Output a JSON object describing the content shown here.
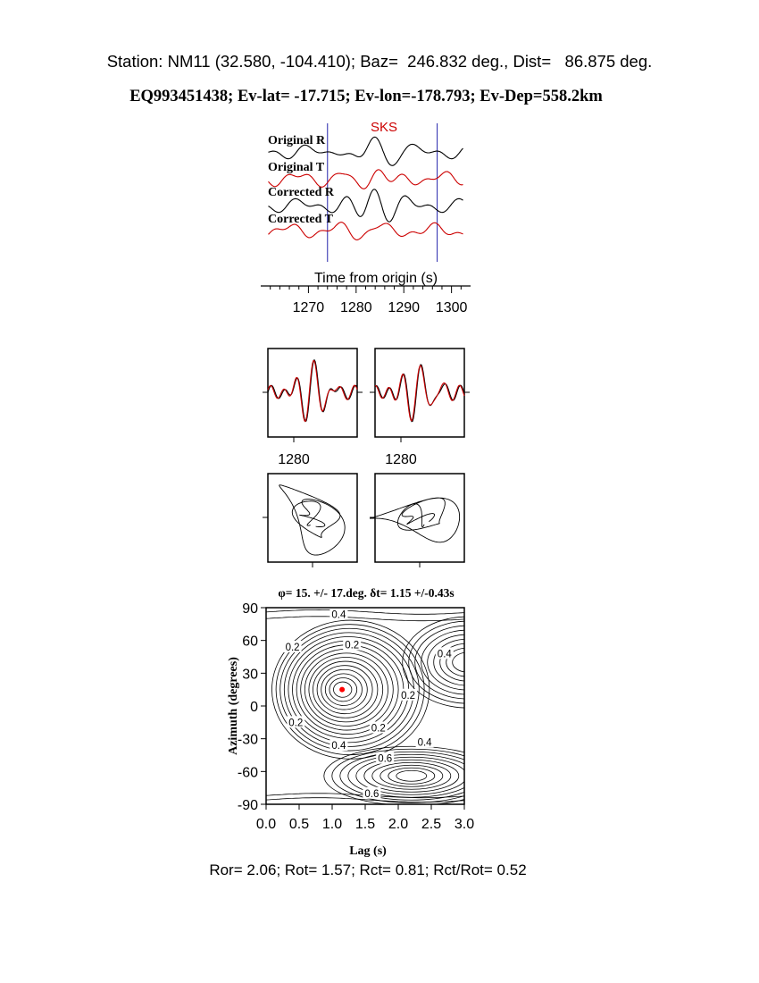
{
  "header": {
    "station_line": "Station: NM11 (32.580, -104.410); Baz=  246.832 deg., Dist=   86.875 deg.",
    "event_line": "EQ993451438; Ev-lat= -17.715; Ev-lon=-178.793; Ev-Dep=558.2km"
  },
  "footer": {
    "ratio_line": "Ror= 2.06; Rot= 1.57; Rct= 0.81; Rct/Rot= 0.52"
  },
  "colors": {
    "radial": "#000000",
    "transverse": "#cc0000",
    "window_marker": "#2222aa",
    "phase_label": "#cc0000",
    "best_fit_dot": "#ff0000"
  },
  "chart_data": [
    {
      "type": "line",
      "name": "seismograms",
      "phase_label": "SKS",
      "xlabel": "Time from origin (s)",
      "xlim": [
        1260,
        1304
      ],
      "xticks": [
        1270,
        1280,
        1290,
        1300
      ],
      "window": [
        1274,
        1297
      ],
      "traces": [
        {
          "label": "Original R",
          "component": "R"
        },
        {
          "label": "Original T",
          "component": "T"
        },
        {
          "label": "Corrected R",
          "component": "R"
        },
        {
          "label": "Corrected T",
          "component": "T"
        }
      ]
    },
    {
      "type": "line",
      "name": "waveform-comparison",
      "xtick_labels": [
        "1280",
        "1280"
      ],
      "panels": [
        "original",
        "corrected"
      ]
    },
    {
      "type": "scatter",
      "name": "particle-motion",
      "panels": [
        "original",
        "corrected"
      ]
    },
    {
      "type": "heatmap",
      "name": "energy-contour",
      "title": "φ= 15. +/- 17.deg. δt= 1.15 +/-0.43s",
      "xlabel": "Lag (s)",
      "ylabel": "Azimuth (degrees)",
      "xlim": [
        0,
        3
      ],
      "ylim": [
        -90,
        90
      ],
      "xticks": [
        "0.0",
        "0.5",
        "1.0",
        "1.5",
        "2.0",
        "2.5",
        "3.0"
      ],
      "yticks": [
        "90",
        "60",
        "30",
        "0",
        "-30",
        "-60",
        "-90"
      ],
      "best_fit": {
        "lag": 1.15,
        "azimuth": 15
      },
      "contour_labels": [
        {
          "text": "0.4",
          "lag": 1.1,
          "azimuth": 84
        },
        {
          "text": "0.2",
          "lag": 0.4,
          "azimuth": 54
        },
        {
          "text": "0.2",
          "lag": 1.3,
          "azimuth": 56
        },
        {
          "text": "0.4",
          "lag": 2.7,
          "azimuth": 48
        },
        {
          "text": "0.2",
          "lag": 2.15,
          "azimuth": 10
        },
        {
          "text": "0.2",
          "lag": 0.45,
          "azimuth": -15
        },
        {
          "text": "0.2",
          "lag": 1.7,
          "azimuth": -20
        },
        {
          "text": "0.4",
          "lag": 1.1,
          "azimuth": -36
        },
        {
          "text": "0.4",
          "lag": 2.4,
          "azimuth": -33
        },
        {
          "text": "0.6",
          "lag": 1.8,
          "azimuth": -48
        },
        {
          "text": "0.6",
          "lag": 1.6,
          "azimuth": -80
        }
      ]
    }
  ]
}
